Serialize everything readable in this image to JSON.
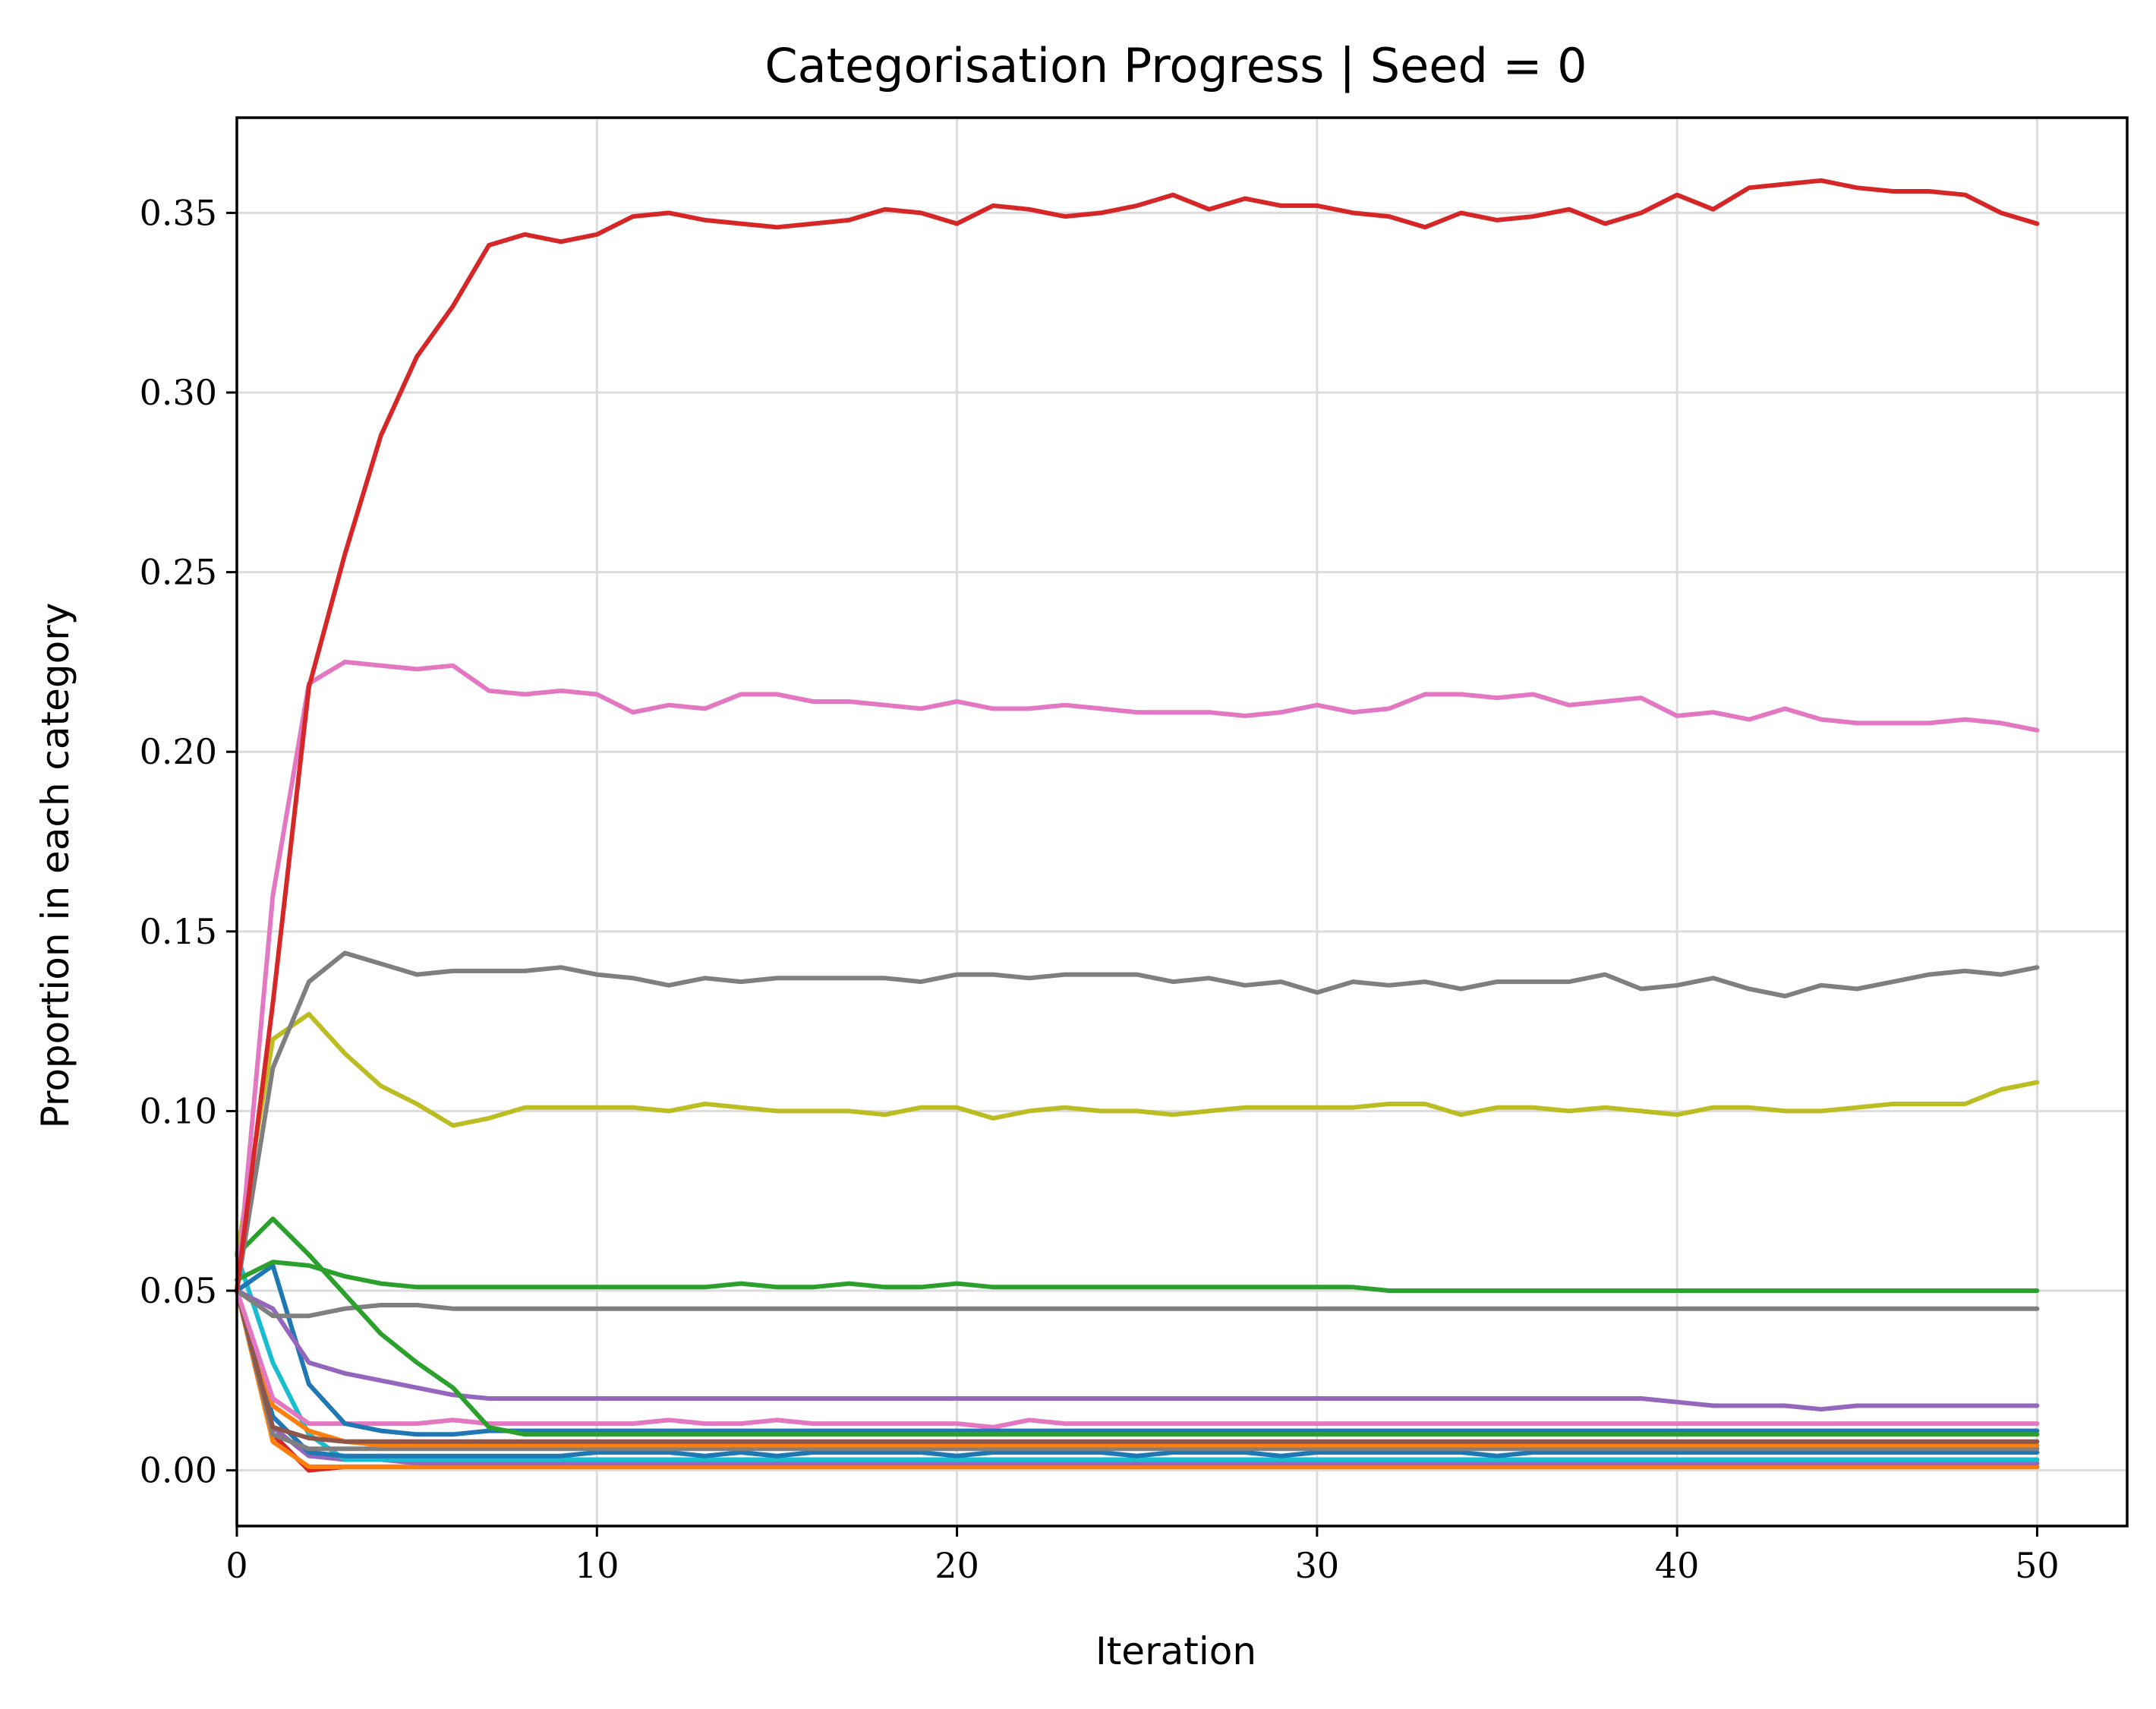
{
  "chart_data": {
    "type": "line",
    "title": "Categorisation Progress | Seed = 0",
    "xlabel": "Iteration",
    "ylabel": "Proportion in each category",
    "xlim": [
      0,
      52.5
    ],
    "ylim": [
      -0.0155,
      0.3765
    ],
    "xticks": [
      0,
      10,
      20,
      30,
      40,
      50
    ],
    "xtick_labels": [
      "0",
      "10",
      "20",
      "30",
      "40",
      "50"
    ],
    "yticks": [
      0.0,
      0.05,
      0.1,
      0.15,
      0.2,
      0.25,
      0.3,
      0.35
    ],
    "ytick_labels": [
      "0.00",
      "0.05",
      "0.10",
      "0.15",
      "0.20",
      "0.25",
      "0.30",
      "0.35"
    ],
    "grid": true,
    "legend": "none",
    "series": [
      {
        "color": "#d62728",
        "values": [
          0.05,
          0.13,
          0.218,
          0.255,
          0.288,
          0.31,
          0.324,
          0.341,
          0.344,
          0.342,
          0.344,
          0.349,
          0.35,
          0.348,
          0.347,
          0.346,
          0.347,
          0.348,
          0.351,
          0.35,
          0.347,
          0.352,
          0.351,
          0.349,
          0.35,
          0.352,
          0.355,
          0.351,
          0.354,
          0.352,
          0.352,
          0.35,
          0.349,
          0.346,
          0.35,
          0.348,
          0.349,
          0.351,
          0.347,
          0.35,
          0.355,
          0.351,
          0.357,
          0.358,
          0.359,
          0.357,
          0.356,
          0.356,
          0.355,
          0.35,
          0.347
        ]
      },
      {
        "color": "#e377c2",
        "values": [
          0.05,
          0.16,
          0.219,
          0.225,
          0.224,
          0.223,
          0.224,
          0.217,
          0.216,
          0.217,
          0.216,
          0.211,
          0.213,
          0.212,
          0.216,
          0.216,
          0.214,
          0.214,
          0.213,
          0.212,
          0.214,
          0.212,
          0.212,
          0.213,
          0.212,
          0.211,
          0.211,
          0.211,
          0.21,
          0.211,
          0.213,
          0.211,
          0.212,
          0.216,
          0.216,
          0.215,
          0.216,
          0.213,
          0.214,
          0.215,
          0.21,
          0.211,
          0.209,
          0.212,
          0.209,
          0.208,
          0.208,
          0.208,
          0.209,
          0.208,
          0.206
        ]
      },
      {
        "color": "#7f7f7f",
        "values": [
          0.05,
          0.112,
          0.136,
          0.144,
          0.141,
          0.138,
          0.139,
          0.139,
          0.139,
          0.14,
          0.138,
          0.137,
          0.135,
          0.137,
          0.136,
          0.137,
          0.137,
          0.137,
          0.137,
          0.136,
          0.138,
          0.138,
          0.137,
          0.138,
          0.138,
          0.138,
          0.136,
          0.137,
          0.135,
          0.136,
          0.133,
          0.136,
          0.135,
          0.136,
          0.134,
          0.136,
          0.136,
          0.136,
          0.138,
          0.134,
          0.135,
          0.137,
          0.134,
          0.132,
          0.135,
          0.134,
          0.136,
          0.138,
          0.139,
          0.138,
          0.14
        ]
      },
      {
        "color": "#bcbd22",
        "values": [
          0.06,
          0.12,
          0.127,
          0.116,
          0.107,
          0.102,
          0.096,
          0.098,
          0.101,
          0.101,
          0.101,
          0.101,
          0.1,
          0.102,
          0.101,
          0.1,
          0.1,
          0.1,
          0.099,
          0.101,
          0.101,
          0.098,
          0.1,
          0.101,
          0.1,
          0.1,
          0.099,
          0.1,
          0.101,
          0.101,
          0.101,
          0.101,
          0.102,
          0.102,
          0.099,
          0.101,
          0.101,
          0.1,
          0.101,
          0.1,
          0.099,
          0.101,
          0.101,
          0.1,
          0.1,
          0.101,
          0.102,
          0.102,
          0.102,
          0.106,
          0.108
        ]
      },
      {
        "color": "#2ca02c",
        "values": [
          0.06,
          0.07,
          0.06,
          0.049,
          0.038,
          0.03,
          0.023,
          0.012,
          0.01,
          0.01,
          0.01,
          0.01,
          0.01,
          0.01,
          0.01,
          0.01,
          0.01,
          0.01,
          0.01,
          0.01,
          0.01,
          0.01,
          0.01,
          0.01,
          0.01,
          0.01,
          0.01,
          0.01,
          0.01,
          0.01,
          0.01,
          0.01,
          0.01,
          0.01,
          0.01,
          0.01,
          0.01,
          0.01,
          0.01,
          0.01,
          0.01,
          0.01,
          0.01,
          0.01,
          0.01,
          0.01,
          0.01,
          0.01,
          0.01,
          0.01,
          0.01
        ]
      },
      {
        "color": "#2ca02c",
        "values": [
          0.053,
          0.058,
          0.057,
          0.054,
          0.052,
          0.051,
          0.051,
          0.051,
          0.051,
          0.051,
          0.051,
          0.051,
          0.051,
          0.051,
          0.052,
          0.051,
          0.051,
          0.052,
          0.051,
          0.051,
          0.052,
          0.051,
          0.051,
          0.051,
          0.051,
          0.051,
          0.051,
          0.051,
          0.051,
          0.051,
          0.051,
          0.051,
          0.05,
          0.05,
          0.05,
          0.05,
          0.05,
          0.05,
          0.05,
          0.05,
          0.05,
          0.05,
          0.05,
          0.05,
          0.05,
          0.05,
          0.05,
          0.05,
          0.05,
          0.05,
          0.05
        ]
      },
      {
        "color": "#7f7f7f",
        "values": [
          0.05,
          0.043,
          0.043,
          0.045,
          0.046,
          0.046,
          0.045,
          0.045,
          0.045,
          0.045,
          0.045,
          0.045,
          0.045,
          0.045,
          0.045,
          0.045,
          0.045,
          0.045,
          0.045,
          0.045,
          0.045,
          0.045,
          0.045,
          0.045,
          0.045,
          0.045,
          0.045,
          0.045,
          0.045,
          0.045,
          0.045,
          0.045,
          0.045,
          0.045,
          0.045,
          0.045,
          0.045,
          0.045,
          0.045,
          0.045,
          0.045,
          0.045,
          0.045,
          0.045,
          0.045,
          0.045,
          0.045,
          0.045,
          0.045,
          0.045,
          0.045
        ]
      },
      {
        "color": "#9467bd",
        "values": [
          0.05,
          0.045,
          0.03,
          0.027,
          0.025,
          0.023,
          0.021,
          0.02,
          0.02,
          0.02,
          0.02,
          0.02,
          0.02,
          0.02,
          0.02,
          0.02,
          0.02,
          0.02,
          0.02,
          0.02,
          0.02,
          0.02,
          0.02,
          0.02,
          0.02,
          0.02,
          0.02,
          0.02,
          0.02,
          0.02,
          0.02,
          0.02,
          0.02,
          0.02,
          0.02,
          0.02,
          0.02,
          0.02,
          0.02,
          0.02,
          0.019,
          0.018,
          0.018,
          0.018,
          0.017,
          0.018,
          0.018,
          0.018,
          0.018,
          0.018,
          0.018
        ]
      },
      {
        "color": "#1f77b4",
        "values": [
          0.05,
          0.057,
          0.024,
          0.013,
          0.011,
          0.01,
          0.01,
          0.011,
          0.011,
          0.011,
          0.011,
          0.011,
          0.011,
          0.011,
          0.011,
          0.011,
          0.011,
          0.011,
          0.011,
          0.011,
          0.011,
          0.011,
          0.011,
          0.011,
          0.011,
          0.011,
          0.011,
          0.011,
          0.011,
          0.011,
          0.011,
          0.011,
          0.011,
          0.011,
          0.011,
          0.011,
          0.011,
          0.011,
          0.011,
          0.011,
          0.011,
          0.011,
          0.011,
          0.011,
          0.011,
          0.011,
          0.011,
          0.011,
          0.011,
          0.011,
          0.011
        ]
      },
      {
        "color": "#e377c2",
        "values": [
          0.05,
          0.02,
          0.013,
          0.013,
          0.013,
          0.013,
          0.014,
          0.013,
          0.013,
          0.013,
          0.013,
          0.013,
          0.014,
          0.013,
          0.013,
          0.014,
          0.013,
          0.013,
          0.013,
          0.013,
          0.013,
          0.012,
          0.014,
          0.013,
          0.013,
          0.013,
          0.013,
          0.013,
          0.013,
          0.013,
          0.013,
          0.013,
          0.013,
          0.013,
          0.013,
          0.013,
          0.013,
          0.013,
          0.013,
          0.013,
          0.013,
          0.013,
          0.013,
          0.013,
          0.013,
          0.013,
          0.013,
          0.013,
          0.013,
          0.013,
          0.013
        ]
      },
      {
        "color": "#8c564b",
        "values": [
          0.05,
          0.012,
          0.009,
          0.008,
          0.008,
          0.008,
          0.008,
          0.008,
          0.008,
          0.008,
          0.008,
          0.008,
          0.008,
          0.008,
          0.008,
          0.008,
          0.008,
          0.008,
          0.008,
          0.008,
          0.008,
          0.008,
          0.008,
          0.008,
          0.008,
          0.008,
          0.008,
          0.008,
          0.008,
          0.008,
          0.008,
          0.008,
          0.008,
          0.008,
          0.008,
          0.008,
          0.008,
          0.008,
          0.008,
          0.008,
          0.008,
          0.008,
          0.008,
          0.008,
          0.008,
          0.008,
          0.008,
          0.008,
          0.008,
          0.008,
          0.008
        ]
      },
      {
        "color": "#ff7f0e",
        "values": [
          0.05,
          0.018,
          0.011,
          0.008,
          0.007,
          0.007,
          0.007,
          0.007,
          0.007,
          0.007,
          0.007,
          0.007,
          0.007,
          0.007,
          0.007,
          0.007,
          0.007,
          0.007,
          0.007,
          0.007,
          0.007,
          0.007,
          0.007,
          0.007,
          0.007,
          0.007,
          0.007,
          0.007,
          0.007,
          0.007,
          0.007,
          0.007,
          0.007,
          0.007,
          0.007,
          0.007,
          0.007,
          0.007,
          0.007,
          0.007,
          0.007,
          0.007,
          0.007,
          0.007,
          0.007,
          0.007,
          0.007,
          0.007,
          0.007,
          0.007,
          0.007
        ]
      },
      {
        "color": "#7f7f7f",
        "values": [
          0.05,
          0.01,
          0.006,
          0.006,
          0.006,
          0.006,
          0.006,
          0.006,
          0.006,
          0.006,
          0.006,
          0.006,
          0.006,
          0.006,
          0.006,
          0.006,
          0.006,
          0.006,
          0.006,
          0.006,
          0.006,
          0.006,
          0.006,
          0.006,
          0.006,
          0.006,
          0.006,
          0.006,
          0.006,
          0.006,
          0.006,
          0.006,
          0.006,
          0.006,
          0.006,
          0.006,
          0.006,
          0.006,
          0.006,
          0.006,
          0.006,
          0.006,
          0.006,
          0.006,
          0.006,
          0.006,
          0.006,
          0.006,
          0.006,
          0.006,
          0.006
        ]
      },
      {
        "color": "#1f77b4",
        "values": [
          0.05,
          0.015,
          0.005,
          0.004,
          0.004,
          0.004,
          0.004,
          0.004,
          0.004,
          0.004,
          0.005,
          0.005,
          0.005,
          0.004,
          0.005,
          0.004,
          0.005,
          0.005,
          0.005,
          0.005,
          0.004,
          0.005,
          0.005,
          0.005,
          0.005,
          0.004,
          0.005,
          0.005,
          0.005,
          0.004,
          0.005,
          0.005,
          0.005,
          0.005,
          0.005,
          0.004,
          0.005,
          0.005,
          0.005,
          0.005,
          0.005,
          0.005,
          0.005,
          0.005,
          0.005,
          0.005,
          0.005,
          0.005,
          0.005,
          0.005,
          0.005
        ]
      },
      {
        "color": "#17becf",
        "values": [
          0.06,
          0.03,
          0.01,
          0.003,
          0.003,
          0.003,
          0.003,
          0.003,
          0.003,
          0.003,
          0.003,
          0.003,
          0.003,
          0.003,
          0.003,
          0.003,
          0.003,
          0.003,
          0.003,
          0.003,
          0.003,
          0.003,
          0.003,
          0.003,
          0.003,
          0.003,
          0.003,
          0.003,
          0.003,
          0.003,
          0.003,
          0.003,
          0.003,
          0.003,
          0.003,
          0.003,
          0.003,
          0.003,
          0.003,
          0.003,
          0.003,
          0.003,
          0.003,
          0.003,
          0.003,
          0.003,
          0.003,
          0.003,
          0.003,
          0.003,
          0.003
        ]
      },
      {
        "color": "#9467bd",
        "values": [
          0.05,
          0.012,
          0.004,
          0.003,
          0.003,
          0.002,
          0.002,
          0.002,
          0.002,
          0.002,
          0.002,
          0.002,
          0.002,
          0.002,
          0.002,
          0.002,
          0.002,
          0.002,
          0.002,
          0.002,
          0.002,
          0.002,
          0.002,
          0.002,
          0.002,
          0.002,
          0.002,
          0.002,
          0.002,
          0.002,
          0.002,
          0.002,
          0.002,
          0.002,
          0.002,
          0.002,
          0.002,
          0.002,
          0.002,
          0.002,
          0.002,
          0.002,
          0.002,
          0.002,
          0.002,
          0.002,
          0.002,
          0.002,
          0.002,
          0.002,
          0.002
        ]
      },
      {
        "color": "#ff7f0e",
        "values": [
          0.05,
          0.008,
          0.001,
          0.001,
          0.001,
          0.001,
          0.001,
          0.001,
          0.001,
          0.001,
          0.001,
          0.001,
          0.001,
          0.001,
          0.001,
          0.001,
          0.001,
          0.001,
          0.001,
          0.001,
          0.001,
          0.001,
          0.001,
          0.001,
          0.001,
          0.001,
          0.001,
          0.001,
          0.001,
          0.001,
          0.001,
          0.001,
          0.001,
          0.001,
          0.001,
          0.001,
          0.001,
          0.001,
          0.001,
          0.001,
          0.001,
          0.001,
          0.001,
          0.001,
          0.001,
          0.001,
          0.001,
          0.001,
          0.001,
          0.001,
          0.001
        ]
      },
      {
        "color": "#d62728",
        "values": [
          0.05,
          0.01,
          0.0,
          0.001,
          0.001,
          0.001,
          0.001,
          0.001,
          0.001,
          0.001,
          0.001,
          0.001,
          0.001,
          0.001,
          0.001,
          0.001,
          0.001,
          0.001,
          0.001,
          0.001,
          0.001,
          0.001,
          0.001,
          0.001,
          0.001,
          0.001,
          0.001,
          0.001,
          0.001,
          0.001,
          0.001,
          0.001,
          0.001,
          0.001,
          0.001,
          0.001,
          0.001,
          0.001,
          0.001,
          0.001,
          0.001,
          0.001,
          0.001,
          0.001,
          0.001,
          0.001,
          0.001,
          0.001,
          0.001,
          0.001,
          0.001
        ]
      }
    ]
  }
}
